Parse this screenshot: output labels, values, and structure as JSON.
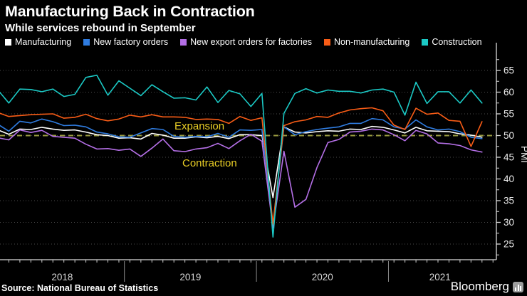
{
  "header": {
    "title": "Manufacturing Back in Contraction",
    "subtitle": "While services rebound in September"
  },
  "legend": [
    {
      "label": "Manufacturing",
      "color": "#ffffff"
    },
    {
      "label": "New factory orders",
      "color": "#2f7ce0"
    },
    {
      "label": "New export orders for factories",
      "color": "#b46fe6"
    },
    {
      "label": "Non-manufacturing",
      "color": "#f85c16"
    },
    {
      "label": "Construction",
      "color": "#1bc9c5"
    }
  ],
  "annotations": {
    "above_threshold": "Expansion",
    "below_threshold": "Contraction"
  },
  "axis": {
    "y_label": "PMI",
    "x_labels": [
      "2018",
      "2019",
      "2020",
      "2021"
    ]
  },
  "footer": {
    "source": "Source: National Bureau of Statistics",
    "brand": "Bloomberg",
    "brand_icon": "bar-chart-icon"
  },
  "chart_data": {
    "type": "line",
    "x_unit": "month",
    "x_start": "2018-01",
    "x_end": "2021-09",
    "ylim": [
      21,
      69
    ],
    "yticks": [
      25,
      30,
      35,
      40,
      45,
      50,
      55,
      60,
      65
    ],
    "ylabel": "PMI",
    "xlabel": "",
    "grid": true,
    "legend_position": "top",
    "threshold": {
      "value": 50,
      "color": "#9a9b41",
      "style": "dashed",
      "label_above": "Expansion",
      "label_below": "Contraction"
    },
    "series": [
      {
        "name": "Manufacturing",
        "color": "#ffffff",
        "values": [
          51.3,
          50.3,
          51.5,
          51.4,
          51.9,
          51.5,
          51.2,
          51.3,
          50.8,
          50.2,
          50.0,
          49.4,
          49.5,
          49.2,
          50.5,
          50.1,
          49.4,
          49.4,
          49.7,
          49.5,
          49.8,
          49.3,
          50.2,
          50.2,
          50.0,
          35.7,
          52.0,
          50.8,
          50.6,
          50.9,
          51.1,
          51.0,
          51.5,
          51.4,
          52.1,
          51.9,
          51.3,
          50.6,
          51.9,
          51.1,
          51.0,
          50.9,
          50.4,
          50.1,
          49.6
        ]
      },
      {
        "name": "New factory orders",
        "color": "#2f7ce0",
        "values": [
          52.6,
          51.0,
          53.3,
          52.9,
          53.8,
          53.2,
          52.3,
          52.4,
          52.0,
          50.8,
          50.4,
          49.7,
          49.6,
          50.6,
          51.6,
          51.4,
          49.8,
          49.6,
          49.8,
          49.7,
          50.5,
          49.6,
          51.3,
          51.2,
          51.4,
          29.3,
          52.0,
          50.2,
          50.9,
          51.4,
          51.7,
          52.0,
          52.8,
          52.8,
          53.9,
          53.6,
          52.0,
          51.5,
          53.6,
          52.0,
          51.3,
          51.5,
          50.9,
          49.6,
          49.3
        ]
      },
      {
        "name": "New export orders for factories",
        "color": "#b46fe6",
        "values": [
          49.5,
          49.0,
          51.3,
          50.7,
          51.2,
          49.8,
          49.6,
          49.4,
          48.0,
          46.9,
          47.0,
          46.6,
          46.9,
          45.2,
          47.1,
          49.2,
          46.5,
          46.3,
          46.9,
          47.2,
          48.2,
          47.0,
          48.8,
          50.3,
          48.7,
          28.7,
          46.4,
          33.5,
          35.3,
          42.6,
          48.4,
          49.1,
          50.8,
          51.0,
          51.5,
          51.3,
          50.2,
          48.8,
          51.2,
          50.4,
          48.3,
          48.1,
          47.7,
          46.7,
          46.2
        ]
      },
      {
        "name": "Non-manufacturing",
        "color": "#f85c16",
        "values": [
          55.3,
          54.4,
          54.6,
          54.8,
          54.9,
          55.0,
          54.0,
          54.2,
          54.9,
          53.9,
          53.4,
          53.8,
          54.7,
          54.3,
          54.8,
          54.3,
          54.3,
          54.2,
          53.7,
          53.8,
          53.7,
          52.8,
          54.4,
          53.5,
          54.1,
          29.6,
          52.3,
          53.2,
          53.6,
          54.4,
          54.2,
          55.2,
          55.9,
          56.2,
          56.4,
          55.7,
          52.4,
          51.4,
          56.3,
          54.9,
          55.2,
          53.5,
          53.3,
          47.5,
          53.2
        ]
      },
      {
        "name": "Construction",
        "color": "#1bc9c5",
        "values": [
          60.5,
          57.5,
          60.7,
          60.6,
          60.1,
          60.7,
          59.0,
          59.5,
          63.4,
          63.9,
          59.3,
          62.6,
          60.9,
          59.2,
          61.7,
          60.1,
          58.6,
          58.7,
          58.2,
          61.2,
          57.6,
          60.4,
          59.6,
          56.7,
          59.7,
          26.6,
          55.1,
          59.7,
          60.8,
          59.8,
          60.5,
          60.2,
          60.2,
          59.8,
          60.5,
          60.7,
          60.0,
          54.7,
          62.3,
          57.4,
          60.1,
          60.1,
          57.5,
          60.5,
          57.5
        ]
      }
    ]
  }
}
